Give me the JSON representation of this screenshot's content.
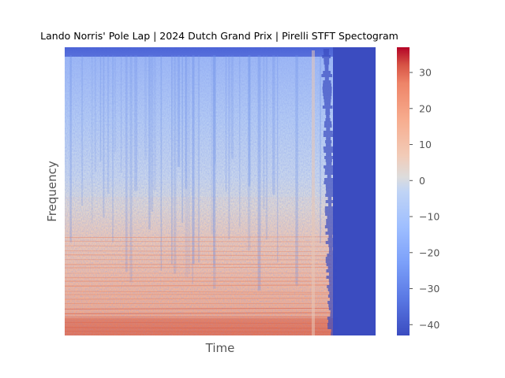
{
  "chart_data": {
    "type": "heatmap",
    "title": "Lando Norris' Pole Lap | 2024 Dutch Grand Prix | Pirelli STFT Spectogram",
    "xlabel": "Time",
    "ylabel": "Frequency",
    "x_ticks": [],
    "y_ticks": [],
    "grid": false,
    "colormap": "coolwarm",
    "colorbar": {
      "vmin": -43,
      "vmax": 37,
      "ticks": [
        30,
        20,
        10,
        0,
        -10,
        -20,
        -30,
        -40
      ],
      "tick_labels": [
        "30",
        "20",
        "10",
        "0",
        "−10",
        "−20",
        "−30",
        "−40"
      ]
    },
    "colors": {
      "low": "#3b4cc0",
      "mid": "#dddddd",
      "high": "#b40426",
      "background_fill": "#3b4cc0"
    }
  }
}
